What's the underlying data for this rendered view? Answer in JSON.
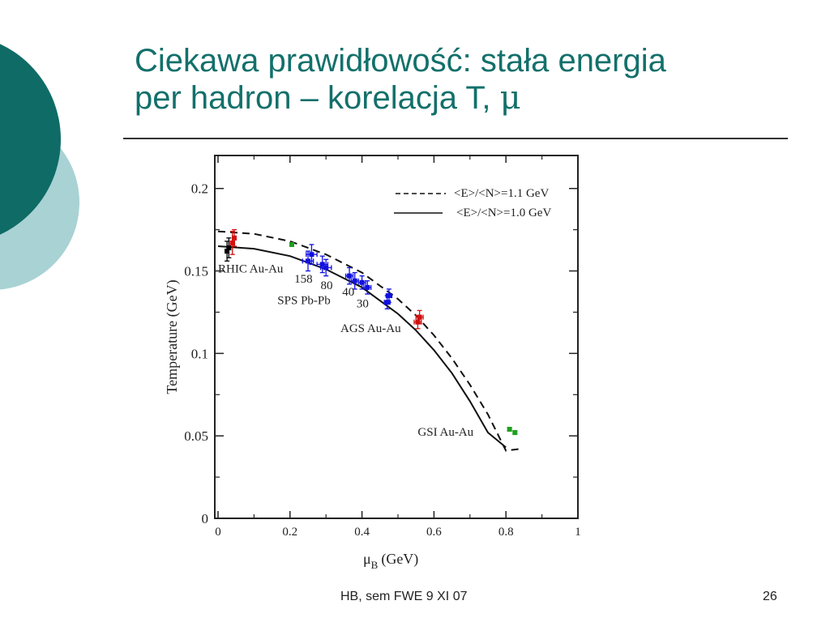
{
  "slide": {
    "title_line1": "Ciekawa prawidłowość: stała energia",
    "title_line2_prefix": "per hadron – korelacja T, ",
    "title_line2_symbol": "μ",
    "footer_text": "HB, sem FWE 9 XI 07",
    "page_number": "26",
    "colors": {
      "title": "#13706b",
      "decor_dark": "#0f6b66",
      "decor_light": "#a9d2d4"
    }
  },
  "chart_data": {
    "type": "scatter",
    "title": "",
    "xlabel": "μ",
    "xlabel_sub": "B",
    "xlabel_unit": "(GeV)",
    "ylabel": "Temperature (GeV)",
    "xlim": [
      0,
      1
    ],
    "ylim": [
      0,
      0.22
    ],
    "x_ticks": [
      0,
      0.2,
      0.4,
      0.6,
      0.8,
      1
    ],
    "x_tick_labels": [
      "0",
      "0.2",
      "0.4",
      "0.6",
      "0.8",
      "1"
    ],
    "y_ticks": [
      0,
      0.05,
      0.1,
      0.15,
      0.2
    ],
    "y_tick_labels": [
      "0",
      "0.05",
      "0.1",
      "0.15",
      "0.2"
    ],
    "grid": false,
    "legend_position": "top-right",
    "curves": [
      {
        "name": "<E>/<N>=1.1 GeV",
        "dash": "dashed",
        "x": [
          0,
          0.1,
          0.2,
          0.3,
          0.4,
          0.5,
          0.55,
          0.6,
          0.65,
          0.7,
          0.75,
          0.8,
          0.835
        ],
        "y": [
          0.174,
          0.1725,
          0.168,
          0.16,
          0.149,
          0.133,
          0.123,
          0.111,
          0.097,
          0.081,
          0.063,
          0.041,
          0.042
        ]
      },
      {
        "name": "<E>/<N>=1.0 GeV",
        "dash": "solid",
        "x": [
          0,
          0.1,
          0.2,
          0.3,
          0.4,
          0.5,
          0.55,
          0.6,
          0.65,
          0.7,
          0.75,
          0.8
        ],
        "y": [
          0.165,
          0.1635,
          0.159,
          0.151,
          0.14,
          0.124,
          0.114,
          0.102,
          0.088,
          0.071,
          0.052,
          0.043
        ]
      }
    ],
    "groups": [
      {
        "color": "#000000",
        "points": [
          {
            "x": 0.025,
            "y": 0.162,
            "ex": 0.005,
            "ey": 0.006
          },
          {
            "x": 0.03,
            "y": 0.164,
            "ex": 0.005,
            "ey": 0.006
          }
        ]
      },
      {
        "color": "#d01010",
        "points": [
          {
            "x": 0.04,
            "y": 0.167,
            "ex": 0.006,
            "ey": 0.007
          },
          {
            "x": 0.045,
            "y": 0.17,
            "ex": 0.005,
            "ey": 0.005
          }
        ]
      },
      {
        "color": "#1fa01f",
        "points": [
          {
            "x": 0.205,
            "y": 0.166,
            "ex": 0.004,
            "ey": 0.001
          }
        ]
      },
      {
        "color": "#1010e0",
        "points": [
          {
            "x": 0.25,
            "y": 0.156,
            "ex": 0.015,
            "ey": 0.006
          },
          {
            "x": 0.26,
            "y": 0.16,
            "ex": 0.015,
            "ey": 0.006
          },
          {
            "x": 0.29,
            "y": 0.154,
            "ex": 0.015,
            "ey": 0.005
          },
          {
            "x": 0.3,
            "y": 0.152,
            "ex": 0.015,
            "ey": 0.005
          },
          {
            "x": 0.365,
            "y": 0.147,
            "ex": 0.01,
            "ey": 0.005
          },
          {
            "x": 0.38,
            "y": 0.144,
            "ex": 0.01,
            "ey": 0.005
          },
          {
            "x": 0.4,
            "y": 0.143,
            "ex": 0.01,
            "ey": 0.004
          },
          {
            "x": 0.415,
            "y": 0.14,
            "ex": 0.01,
            "ey": 0.004
          },
          {
            "x": 0.47,
            "y": 0.131,
            "ex": 0.008,
            "ey": 0.004
          },
          {
            "x": 0.475,
            "y": 0.135,
            "ex": 0.008,
            "ey": 0.004
          }
        ]
      },
      {
        "color": "#d01010",
        "points": [
          {
            "x": 0.555,
            "y": 0.119,
            "ex": 0.01,
            "ey": 0.004
          },
          {
            "x": 0.56,
            "y": 0.122,
            "ex": 0.01,
            "ey": 0.004
          }
        ]
      },
      {
        "color": "#1fa01f",
        "points": [
          {
            "x": 0.81,
            "y": 0.054,
            "ex": 0.003,
            "ey": 0.001
          },
          {
            "x": 0.825,
            "y": 0.052,
            "ex": 0.003,
            "ey": 0.001
          }
        ]
      }
    ],
    "annotations": [
      {
        "text": "RHIC Au-Au",
        "x": 0.0,
        "y": 0.149
      },
      {
        "text": "158",
        "x": 0.212,
        "y": 0.143
      },
      {
        "text": "80",
        "x": 0.285,
        "y": 0.139
      },
      {
        "text": "40",
        "x": 0.345,
        "y": 0.135
      },
      {
        "text": "30",
        "x": 0.385,
        "y": 0.128
      },
      {
        "text": "SPS Pb-Pb",
        "x": 0.165,
        "y": 0.13
      },
      {
        "text": "AGS Au-Au",
        "x": 0.34,
        "y": 0.113
      },
      {
        "text": "GSI Au-Au",
        "x": 0.555,
        "y": 0.05
      }
    ]
  }
}
